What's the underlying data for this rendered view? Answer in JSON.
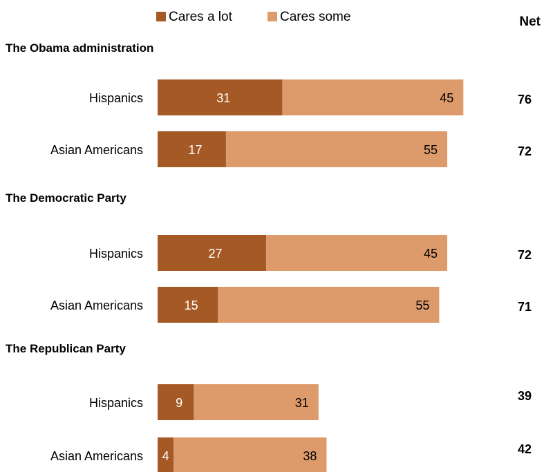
{
  "chart_data": {
    "type": "bar",
    "orientation": "horizontal",
    "stacked": true,
    "legend": {
      "placement": "top",
      "items": [
        {
          "name": "Cares a lot",
          "color": "#a55a26"
        },
        {
          "name": "Cares some",
          "color": "#dd9a6b"
        }
      ]
    },
    "net_header": "Net",
    "groups": [
      {
        "title": "The Obama administration",
        "rows": [
          {
            "label": "Hispanics",
            "values": [
              31,
              45
            ],
            "net": "76"
          },
          {
            "label": "Asian Americans",
            "values": [
              17,
              55
            ],
            "net": "72"
          }
        ]
      },
      {
        "title": "The Democratic Party",
        "rows": [
          {
            "label": "Hispanics",
            "values": [
              27,
              45
            ],
            "net": "72"
          },
          {
            "label": "Asian Americans",
            "values": [
              15,
              55
            ],
            "net": "71"
          }
        ]
      },
      {
        "title": "The Republican Party",
        "rows": [
          {
            "label": "Hispanics",
            "values": [
              9,
              31
            ],
            "net": "39"
          },
          {
            "label": "Asian Americans",
            "values": [
              4,
              38
            ],
            "net": "42"
          }
        ]
      }
    ],
    "label_colors": [
      "#ffffff",
      "#000000"
    ],
    "grid": false
  }
}
